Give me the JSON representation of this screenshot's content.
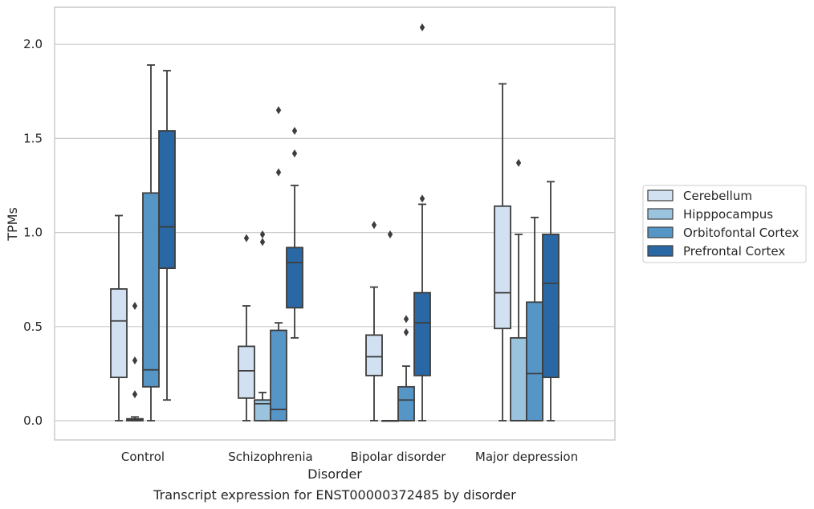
{
  "chart_data": {
    "type": "box",
    "title": "Transcript expression for ENST00000372485 by disorder",
    "xlabel": "Disorder",
    "ylabel": "TPMs",
    "ylim": [
      -0.1,
      2.2
    ],
    "yticks": [
      "0.0",
      "0.5",
      "1.0",
      "1.5",
      "2.0"
    ],
    "grid": "horizontal",
    "legend_position": "right",
    "categories": [
      "Control",
      "Schizophrenia",
      "Bipolar disorder",
      "Major depression"
    ],
    "series": [
      {
        "name": "Cerebellum",
        "color": "#d1e1f1",
        "boxes": [
          {
            "whislo": 0.0,
            "q1": 0.23,
            "med": 0.53,
            "q3": 0.7,
            "whishi": 1.09,
            "fliers": []
          },
          {
            "whislo": 0.0,
            "q1": 0.12,
            "med": 0.265,
            "q3": 0.395,
            "whishi": 0.61,
            "fliers": [
              0.97
            ]
          },
          {
            "whislo": 0.0,
            "q1": 0.24,
            "med": 0.34,
            "q3": 0.455,
            "whishi": 0.71,
            "fliers": [
              1.04
            ]
          },
          {
            "whislo": 0.0,
            "q1": 0.49,
            "med": 0.68,
            "q3": 1.14,
            "whishi": 1.79,
            "fliers": []
          }
        ]
      },
      {
        "name": "Hipppocampus",
        "color": "#9ac3dd",
        "boxes": [
          {
            "whislo": 0.0,
            "q1": 0.0,
            "med": 0.005,
            "q3": 0.01,
            "whishi": 0.02,
            "fliers": [
              0.14,
              0.32,
              0.61
            ]
          },
          {
            "whislo": 0.0,
            "q1": 0.0,
            "med": 0.09,
            "q3": 0.11,
            "whishi": 0.15,
            "fliers": [
              0.95,
              0.99
            ]
          },
          {
            "whislo": 0.0,
            "q1": 0.0,
            "med": 0.0,
            "q3": 0.0,
            "whishi": 0.0,
            "fliers": [
              0.99
            ]
          },
          {
            "whislo": 0.0,
            "q1": 0.0,
            "med": 0.0,
            "q3": 0.44,
            "whishi": 0.99,
            "fliers": [
              1.37
            ]
          }
        ]
      },
      {
        "name": "Orbitofontal Cortex",
        "color": "#5596c7",
        "boxes": [
          {
            "whislo": 0.0,
            "q1": 0.18,
            "med": 0.27,
            "q3": 1.21,
            "whishi": 1.89,
            "fliers": []
          },
          {
            "whislo": 0.0,
            "q1": 0.0,
            "med": 0.06,
            "q3": 0.48,
            "whishi": 0.52,
            "fliers": [
              1.32,
              1.65
            ]
          },
          {
            "whislo": 0.0,
            "q1": 0.0,
            "med": 0.11,
            "q3": 0.18,
            "whishi": 0.29,
            "fliers": [
              0.47,
              0.54
            ]
          },
          {
            "whislo": 0.0,
            "q1": 0.0,
            "med": 0.25,
            "q3": 0.63,
            "whishi": 1.08,
            "fliers": []
          }
        ]
      },
      {
        "name": "Prefrontal Cortex",
        "color": "#2a68a5",
        "boxes": [
          {
            "whislo": 0.11,
            "q1": 0.81,
            "med": 1.03,
            "q3": 1.54,
            "whishi": 1.86,
            "fliers": []
          },
          {
            "whislo": 0.44,
            "q1": 0.6,
            "med": 0.84,
            "q3": 0.92,
            "whishi": 1.25,
            "fliers": [
              1.42,
              1.54
            ]
          },
          {
            "whislo": 0.0,
            "q1": 0.24,
            "med": 0.52,
            "q3": 0.68,
            "whishi": 1.15,
            "fliers": [
              1.18,
              2.09
            ]
          },
          {
            "whislo": 0.0,
            "q1": 0.23,
            "med": 0.73,
            "q3": 0.99,
            "whishi": 1.27,
            "fliers": []
          }
        ]
      }
    ]
  },
  "colors": {
    "edge": "#3d3d3d",
    "grid": "#cccccc",
    "frame": "#cccccc",
    "text": "#262626"
  }
}
